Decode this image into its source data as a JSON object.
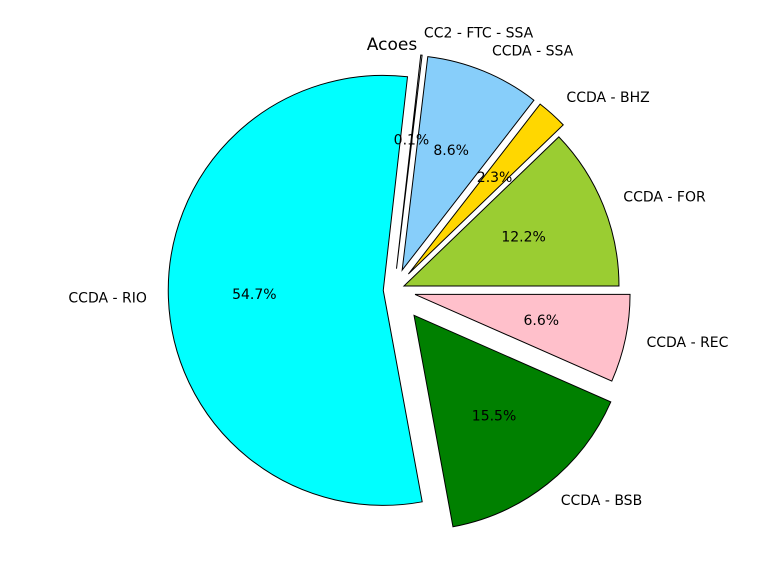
{
  "chart_data": {
    "type": "pie",
    "title": "Acoes",
    "slices": [
      {
        "label": "CCDA - FOR",
        "value": 12.2,
        "pct_label": "12.2%",
        "color": "#9acd32",
        "explode": 0.05
      },
      {
        "label": "CCDA - BHZ",
        "value": 2.3,
        "pct_label": "2.3%",
        "color": "#ffd700",
        "explode": 0.1
      },
      {
        "label": "CCDA - SSA",
        "value": 8.6,
        "pct_label": "8.6%",
        "color": "#87cefa",
        "explode": 0.1
      },
      {
        "label": "CC2 - FTC - SSA",
        "value": 0.1,
        "pct_label": "0.1%",
        "color": "#ffffff",
        "explode": 0.1
      },
      {
        "label": "CCDA - RIO",
        "value": 54.7,
        "pct_label": "54.7%",
        "color": "#00ffff",
        "explode": 0.05
      },
      {
        "label": "CCDA - BSB",
        "value": 15.5,
        "pct_label": "15.5%",
        "color": "#008000",
        "explode": 0.15
      },
      {
        "label": "CCDA - REC",
        "value": 6.6,
        "pct_label": "6.6%",
        "color": "#ffc0cb",
        "explode": 0.1
      }
    ],
    "start_angle_deg": 0,
    "direction": "counterclockwise",
    "legend": "none"
  }
}
